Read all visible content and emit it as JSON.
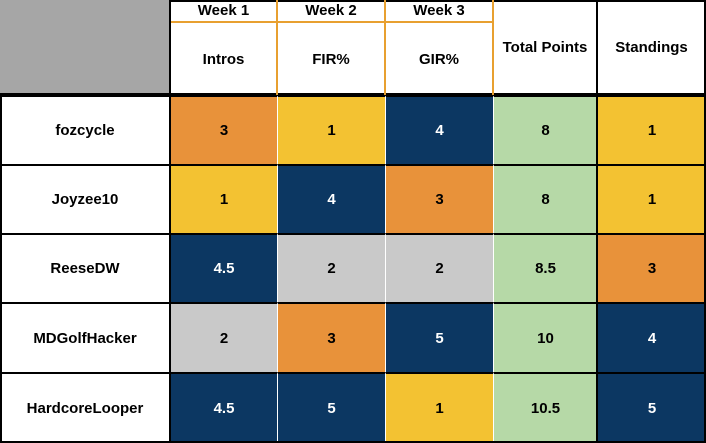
{
  "header": {
    "weeks": [
      "Week 1",
      "Week 2",
      "Week 3"
    ],
    "labels": [
      "Intros",
      "FIR%",
      "GIR%"
    ],
    "total": "Total Points",
    "standings": "Standings"
  },
  "rows": [
    {
      "name": "fozcycle",
      "cells": [
        3,
        1,
        4,
        8,
        1
      ],
      "colors": [
        "#e8923a",
        "#f3c232",
        "#0c3762",
        "#b6d9a7",
        "#f3c232"
      ]
    },
    {
      "name": "Joyzee10",
      "cells": [
        1,
        4,
        3,
        8,
        1
      ],
      "colors": [
        "#f3c232",
        "#0c3762",
        "#e8923a",
        "#b6d9a7",
        "#f3c232"
      ]
    },
    {
      "name": "ReeseDW",
      "cells": [
        4.5,
        2,
        2,
        8.5,
        3
      ],
      "colors": [
        "#0c3762",
        "#c9c9c9",
        "#c9c9c9",
        "#b6d9a7",
        "#e8923a"
      ]
    },
    {
      "name": "MDGolfHacker",
      "cells": [
        2,
        3,
        5,
        10,
        4
      ],
      "colors": [
        "#c9c9c9",
        "#e8923a",
        "#0c3762",
        "#b6d9a7",
        "#0c3762"
      ]
    },
    {
      "name": "HardcoreLooper",
      "cells": [
        4.5,
        5,
        1,
        10.5,
        5
      ],
      "colors": [
        "#0c3762",
        "#0c3762",
        "#f3c232",
        "#b6d9a7",
        "#0c3762"
      ]
    }
  ]
}
